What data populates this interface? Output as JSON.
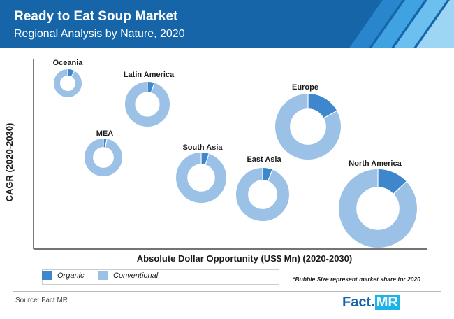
{
  "header": {
    "title": "Ready to Eat Soup Market",
    "subtitle": "Regional Analysis by Nature, 2020",
    "colors": {
      "bar": "#1565a8"
    }
  },
  "chart_data": {
    "type": "bubble-donut",
    "xlabel": "Absolute Dollar Opportunity (US$ Mn) (2020-2030)",
    "ylabel": "CAGR (2020-2030)",
    "series": [
      {
        "name": "Organic",
        "color": "#3f87cc"
      },
      {
        "name": "Conventional",
        "color": "#9cc1e6"
      }
    ],
    "bubbles": [
      {
        "region": "Oceania",
        "organic_share": 0.08,
        "conventional_share": 0.92
      },
      {
        "region": "Latin America",
        "organic_share": 0.05,
        "conventional_share": 0.95
      },
      {
        "region": "MEA",
        "organic_share": 0.03,
        "conventional_share": 0.97
      },
      {
        "region": "South Asia",
        "organic_share": 0.05,
        "conventional_share": 0.95
      },
      {
        "region": "East Asia",
        "organic_share": 0.06,
        "conventional_share": 0.94
      },
      {
        "region": "Europe",
        "organic_share": 0.17,
        "conventional_share": 0.83
      },
      {
        "region": "North America",
        "organic_share": 0.13,
        "conventional_share": 0.87
      }
    ],
    "note": "*Bubble Size represent market share for 2020"
  },
  "legend": {
    "organic": "Organic",
    "conventional": "Conventional"
  },
  "footer": {
    "source": "Source: Fact.MR",
    "brand_part1": "Fact.",
    "brand_part2": "MR"
  }
}
